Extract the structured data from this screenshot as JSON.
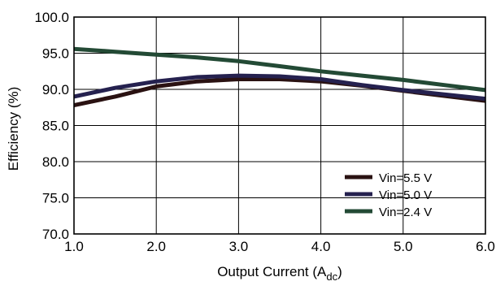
{
  "chart_data": {
    "type": "line",
    "xlabel": "Output Current (A",
    "xlabel_sub": "dc",
    "xlabel_close": ")",
    "ylabel": "Efficiency (%)",
    "xlim": [
      1.0,
      6.0
    ],
    "ylim": [
      70.0,
      100.0
    ],
    "x_ticks": [
      1.0,
      2.0,
      3.0,
      4.0,
      5.0,
      6.0
    ],
    "x_tick_labels": [
      "1.0",
      "2.0",
      "3.0",
      "4.0",
      "5.0",
      "6.0"
    ],
    "y_ticks": [
      70.0,
      75.0,
      80.0,
      85.0,
      90.0,
      95.0,
      100.0
    ],
    "y_tick_labels": [
      "70.0",
      "75.0",
      "80.0",
      "85.0",
      "90.0",
      "95.0",
      "100.0"
    ],
    "grid": true,
    "legend_position": "bottom-right",
    "series": [
      {
        "name": "Vin=5.5 V",
        "color": "#2a1212",
        "x": [
          1.0,
          1.5,
          2.0,
          2.5,
          3.0,
          3.5,
          4.0,
          4.5,
          5.0,
          5.5,
          6.0
        ],
        "y": [
          87.8,
          89.0,
          90.4,
          91.1,
          91.4,
          91.4,
          91.1,
          90.5,
          89.8,
          89.1,
          88.4
        ]
      },
      {
        "name": "Vin=5.0 V",
        "color": "#25214f",
        "x": [
          1.0,
          1.5,
          2.0,
          2.5,
          3.0,
          3.5,
          4.0,
          4.5,
          5.0,
          5.5,
          6.0
        ],
        "y": [
          89.0,
          90.2,
          91.1,
          91.7,
          91.9,
          91.8,
          91.4,
          90.6,
          89.9,
          89.3,
          88.7
        ]
      },
      {
        "name": "Vin=2.4 V",
        "color": "#234a35",
        "x": [
          1.0,
          1.5,
          2.0,
          2.5,
          3.0,
          3.5,
          4.0,
          4.5,
          5.0,
          5.5,
          6.0
        ],
        "y": [
          95.6,
          95.2,
          94.8,
          94.4,
          93.9,
          93.2,
          92.5,
          91.9,
          91.3,
          90.6,
          89.9
        ]
      }
    ]
  }
}
